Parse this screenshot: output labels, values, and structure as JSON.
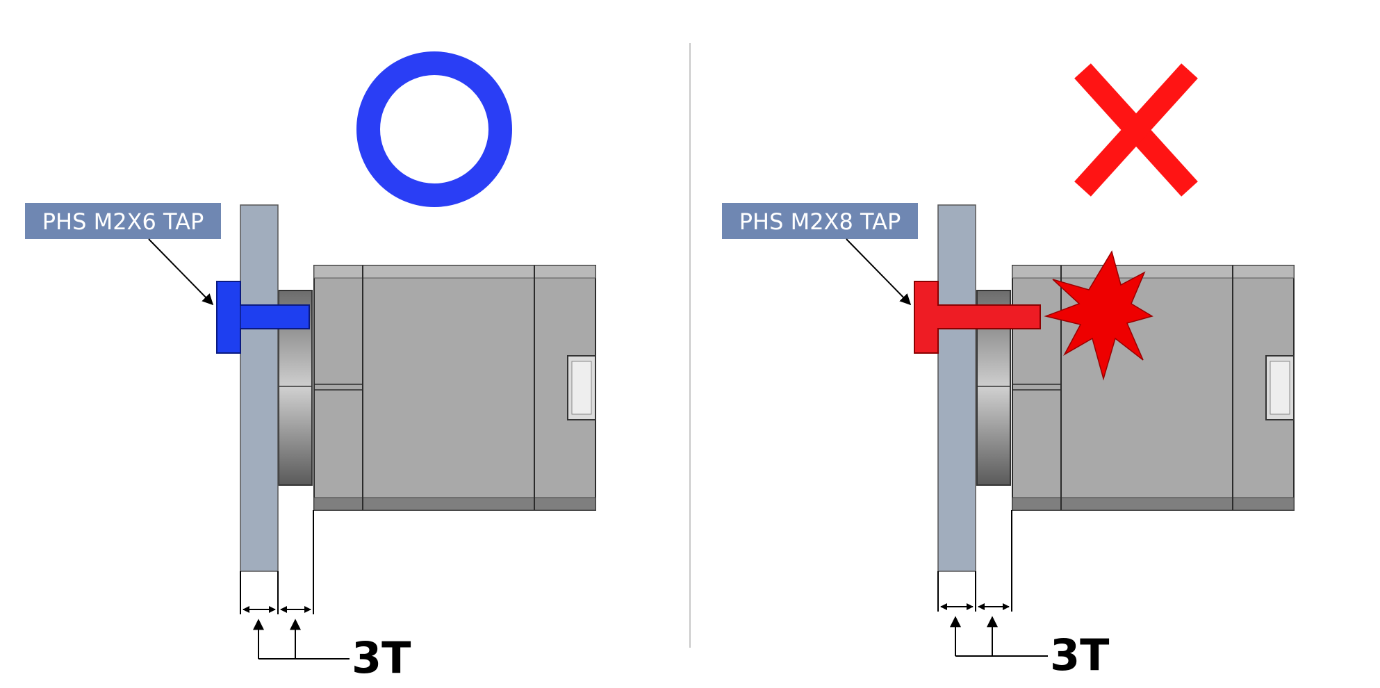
{
  "panels": {
    "good": {
      "screw_label": "PHS M2X6 TAP",
      "thickness_label": "3T",
      "verdict_icon": "circle-ok-icon",
      "screw_color": "#1e3ff0"
    },
    "bad": {
      "screw_label": "PHS M2X8 TAP",
      "thickness_label": "3T",
      "verdict_icon": "cross-ng-icon",
      "screw_color": "#ee1c24",
      "collision_icon": "burst-icon"
    }
  },
  "colors": {
    "label_bg": "#6f87b2",
    "plate": "#a1adbd",
    "motor_body": "#a9a9a9",
    "ok_circle": "#2a3ef5",
    "ng_cross": "#ff1414",
    "burst": "#ee0000"
  }
}
